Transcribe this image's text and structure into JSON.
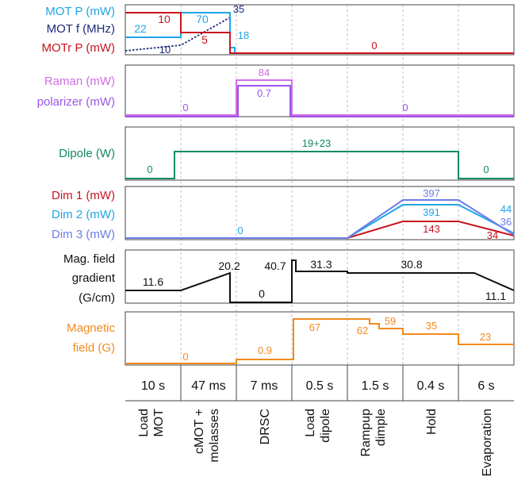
{
  "colors": {
    "mot_p": "#1fa5e8",
    "mot_f": "#1b2a7a",
    "motr_p": "#c8141e",
    "raman": "#d26de6",
    "polarizer": "#9b55e8",
    "dipole": "#138a63",
    "dim1": "#c8141e",
    "dim2": "#1fa5e8",
    "dim3": "#6b7de8",
    "mag_grad": "#111111",
    "mag_field": "#f28a1e",
    "grid": "#bfbfbf",
    "frame": "#444444"
  },
  "panels": {
    "mot": {
      "labels": [
        "MOT P (mW)",
        "MOT f (MHz)",
        "MOTr P (mW)"
      ]
    },
    "raman": {
      "labels": [
        "Raman (mW)",
        "polarizer (mW)"
      ]
    },
    "dipole": {
      "labels": [
        "Dipole (W)"
      ]
    },
    "dimple": {
      "labels": [
        "Dim 1 (mW)",
        "Dim 2 (mW)",
        "Dim 3 (mW)"
      ]
    },
    "grad": {
      "labels": [
        "Mag. field",
        "gradient",
        "(G/cm)"
      ]
    },
    "field": {
      "labels": [
        "Magnetic",
        "field (G)"
      ]
    }
  },
  "value_labels": {
    "motr_10": "10",
    "mot_p_70": "70",
    "mot_f_35": "35",
    "mot_p_22": "22",
    "motr_5": "5",
    "mot_p_18": "18",
    "mot_f_10": "10",
    "motr_0": "0",
    "raman_84": "84",
    "pol_07": "0.7",
    "raman_0a": "0",
    "raman_0b": "0",
    "dipole_0a": "0",
    "dipole_19": "19+23",
    "dipole_0b": "0",
    "dim_397": "397",
    "dim_391": "391",
    "dim_143": "143",
    "dim_0": "0",
    "dim_44": "44",
    "dim_36": "36",
    "dim_34": "34",
    "grad_116": "11.6",
    "grad_202": "20.2",
    "grad_407": "40.7",
    "grad_0": "0",
    "grad_313": "31.3",
    "grad_308": "30.8",
    "grad_111": "11.1",
    "field_0": "0",
    "field_09": "0.9",
    "field_67": "67",
    "field_62": "62",
    "field_59": "59",
    "field_35": "35",
    "field_23": "23"
  },
  "durations": [
    "10 s",
    "47 ms",
    "7 ms",
    "0.5 s",
    "1.5 s",
    "0.4 s",
    "6 s"
  ],
  "stages": [
    [
      "Load",
      "MOT"
    ],
    [
      "cMOT +",
      "molasses"
    ],
    [
      "DRSC"
    ],
    [
      "Load",
      "dipole"
    ],
    [
      "Rampup",
      "dimple"
    ],
    [
      "Hold"
    ],
    [
      "Evaporation"
    ]
  ]
}
